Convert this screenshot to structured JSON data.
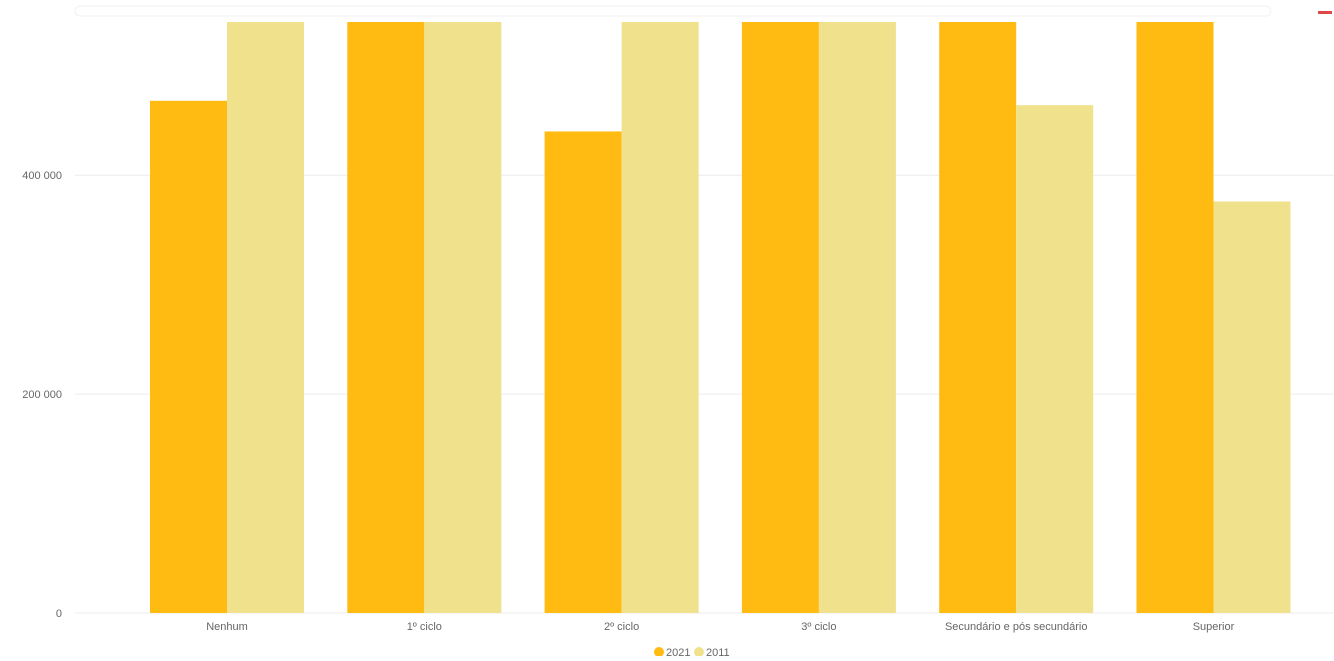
{
  "colors": {
    "series_2021": "#FFBB11",
    "series_2011": "#F0E18D",
    "gridline": "#ECECEC",
    "axis_text": "#666666"
  },
  "chart_data": {
    "type": "bar",
    "categories": [
      "Nenhum",
      "1º ciclo",
      "2º ciclo",
      "3º ciclo",
      "Secundário e pós secundário",
      "Superior"
    ],
    "series": [
      {
        "name": "2021",
        "values": [
          468000,
          540000,
          440000,
          540000,
          540000,
          540000
        ]
      },
      {
        "name": "2011",
        "values": [
          540000,
          540000,
          540000,
          540000,
          464000,
          376000
        ]
      }
    ],
    "yticks": [
      0,
      200000,
      400000
    ],
    "ytick_labels": [
      "0",
      "200 000",
      "400 000"
    ],
    "ylim": [
      0,
      540000
    ],
    "clipped_at_top": true,
    "grid": true,
    "legend_position": "bottom-center",
    "title": "",
    "xlabel": "",
    "ylabel": ""
  }
}
